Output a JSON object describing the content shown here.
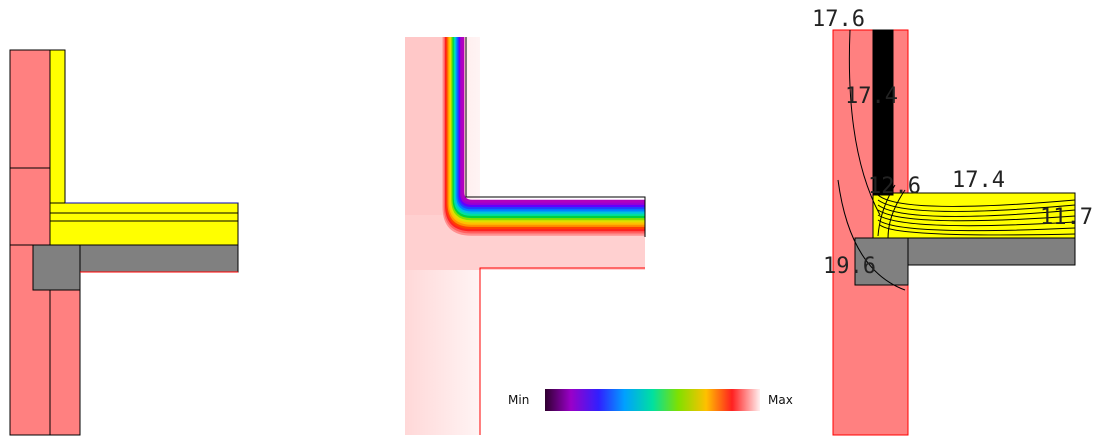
{
  "legend": {
    "min": "Min",
    "max": "Max"
  },
  "isotherm_labels": [
    "17.6",
    "17.4",
    "12.6",
    "17.4",
    "19.6",
    "11.7"
  ]
}
